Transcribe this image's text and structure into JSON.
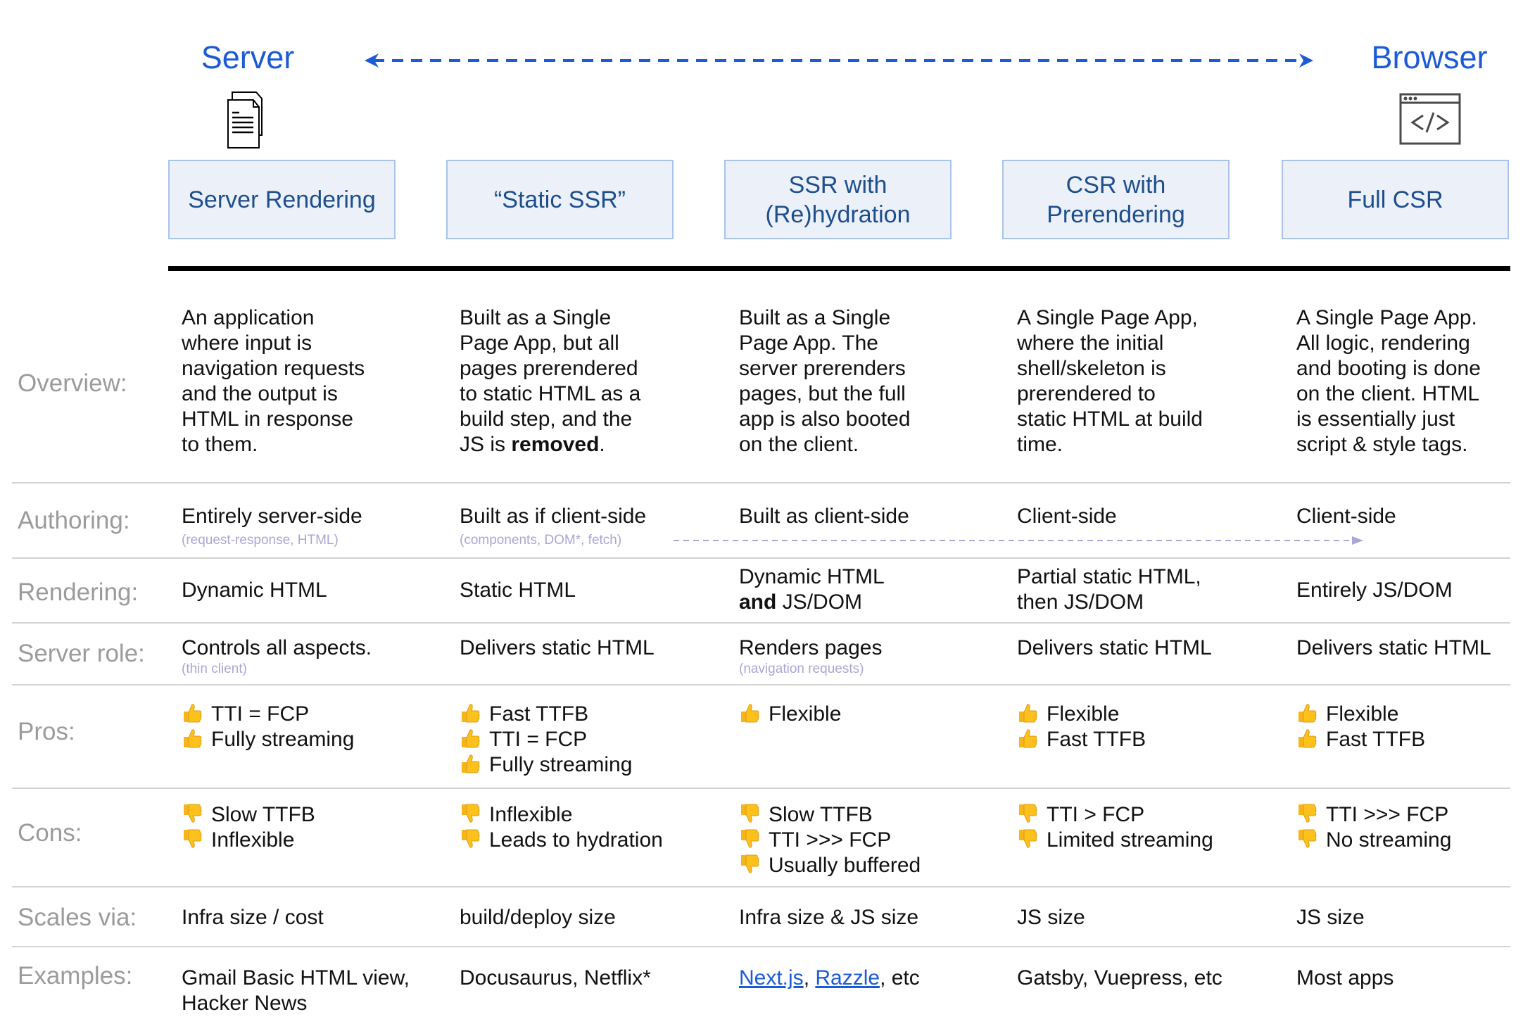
{
  "header": {
    "left_title": "Server",
    "right_title": "Browser",
    "left_icon": "document-icon",
    "right_icon": "browser-code-icon",
    "accent_color": "#1c5ad6"
  },
  "columns": [
    {
      "title": [
        "Server Rendering"
      ]
    },
    {
      "title": [
        "“Static SSR”"
      ]
    },
    {
      "title": [
        "SSR with",
        "(Re)hydration"
      ]
    },
    {
      "title": [
        "CSR with",
        "Prerendering"
      ]
    },
    {
      "title": [
        "Full CSR"
      ]
    }
  ],
  "rows": [
    {
      "key": "overview",
      "label": "Overview:",
      "cells": [
        {
          "lines": [
            [
              {
                "t": "An application"
              }
            ],
            [
              {
                "t": "where input is"
              }
            ],
            [
              {
                "t": "navigation requests"
              }
            ],
            [
              {
                "t": "and the output is"
              }
            ],
            [
              {
                "t": "HTML in response"
              }
            ],
            [
              {
                "t": "to them."
              }
            ]
          ]
        },
        {
          "lines": [
            [
              {
                "t": "Built as a Single"
              }
            ],
            [
              {
                "t": "Page App, but all"
              }
            ],
            [
              {
                "t": "pages prerendered"
              }
            ],
            [
              {
                "t": "to static HTML as a"
              }
            ],
            [
              {
                "t": "build step, and the"
              }
            ],
            [
              {
                "t": "JS is "
              },
              {
                "t": "removed",
                "b": true
              },
              {
                "t": "."
              }
            ]
          ]
        },
        {
          "lines": [
            [
              {
                "t": "Built as a Single"
              }
            ],
            [
              {
                "t": "Page App. The"
              }
            ],
            [
              {
                "t": "server prerenders"
              }
            ],
            [
              {
                "t": "pages, but the full"
              }
            ],
            [
              {
                "t": "app is also booted"
              }
            ],
            [
              {
                "t": "on the client."
              }
            ]
          ]
        },
        {
          "lines": [
            [
              {
                "t": "A Single Page App,"
              }
            ],
            [
              {
                "t": "where the initial"
              }
            ],
            [
              {
                "t": "shell/skeleton is"
              }
            ],
            [
              {
                "t": "prerendered to"
              }
            ],
            [
              {
                "t": "static HTML at build"
              }
            ],
            [
              {
                "t": "time."
              }
            ]
          ]
        },
        {
          "lines": [
            [
              {
                "t": "A Single Page App."
              }
            ],
            [
              {
                "t": "All logic, rendering"
              }
            ],
            [
              {
                "t": "and booting is done"
              }
            ],
            [
              {
                "t": "on the client. HTML"
              }
            ],
            [
              {
                "t": "is essentially just"
              }
            ],
            [
              {
                "t": "script & style tags."
              }
            ]
          ]
        }
      ]
    },
    {
      "key": "authoring",
      "label": "Authoring:",
      "cells": [
        {
          "lines": [
            [
              {
                "t": "Entirely server-side"
              }
            ]
          ],
          "sub": "(request-response, HTML)"
        },
        {
          "lines": [
            [
              {
                "t": "Built as if client-side"
              }
            ]
          ],
          "sub": "(components, DOM*, fetch)"
        },
        {
          "lines": [
            [
              {
                "t": "Built as client-side"
              }
            ]
          ]
        },
        {
          "lines": [
            [
              {
                "t": "Client-side"
              }
            ]
          ]
        },
        {
          "lines": [
            [
              {
                "t": "Client-side"
              }
            ]
          ]
        }
      ]
    },
    {
      "key": "rendering",
      "label": "Rendering:",
      "cells": [
        {
          "lines": [
            [
              {
                "t": "Dynamic HTML"
              }
            ]
          ]
        },
        {
          "lines": [
            [
              {
                "t": "Static HTML"
              }
            ]
          ]
        },
        {
          "lines": [
            [
              {
                "t": "Dynamic HTML"
              }
            ],
            [
              {
                "t": "and",
                "b": true
              },
              {
                "t": " JS/DOM"
              }
            ]
          ]
        },
        {
          "lines": [
            [
              {
                "t": "Partial static HTML,"
              }
            ],
            [
              {
                "t": "then JS/DOM"
              }
            ]
          ]
        },
        {
          "lines": [
            [
              {
                "t": "Entirely JS/DOM"
              }
            ]
          ]
        }
      ]
    },
    {
      "key": "server_role",
      "label": "Server role:",
      "cells": [
        {
          "lines": [
            [
              {
                "t": "Controls all aspects."
              }
            ]
          ],
          "sub": "(thin client)"
        },
        {
          "lines": [
            [
              {
                "t": "Delivers static HTML"
              }
            ]
          ]
        },
        {
          "lines": [
            [
              {
                "t": "Renders pages"
              }
            ]
          ],
          "sub": "(navigation requests)"
        },
        {
          "lines": [
            [
              {
                "t": "Delivers static HTML"
              }
            ]
          ]
        },
        {
          "lines": [
            [
              {
                "t": "Delivers static HTML"
              }
            ]
          ]
        }
      ]
    },
    {
      "key": "pros",
      "label": "Pros:",
      "icon": "thumbs-up-icon",
      "cells": [
        {
          "lines": [
            [
              {
                "t": "TTI = FCP"
              }
            ],
            [
              {
                "t": "Fully streaming"
              }
            ]
          ]
        },
        {
          "lines": [
            [
              {
                "t": "Fast TTFB"
              }
            ],
            [
              {
                "t": "TTI = FCP"
              }
            ],
            [
              {
                "t": "Fully streaming"
              }
            ]
          ]
        },
        {
          "lines": [
            [
              {
                "t": "Flexible"
              }
            ]
          ]
        },
        {
          "lines": [
            [
              {
                "t": "Flexible"
              }
            ],
            [
              {
                "t": "Fast TTFB"
              }
            ]
          ]
        },
        {
          "lines": [
            [
              {
                "t": "Flexible"
              }
            ],
            [
              {
                "t": "Fast TTFB"
              }
            ]
          ]
        }
      ]
    },
    {
      "key": "cons",
      "label": "Cons:",
      "icon": "thumbs-down-icon",
      "cells": [
        {
          "lines": [
            [
              {
                "t": "Slow TTFB"
              }
            ],
            [
              {
                "t": "Inflexible"
              }
            ]
          ]
        },
        {
          "lines": [
            [
              {
                "t": "Inflexible"
              }
            ],
            [
              {
                "t": "Leads to hydration"
              }
            ]
          ]
        },
        {
          "lines": [
            [
              {
                "t": "Slow TTFB"
              }
            ],
            [
              {
                "t": "TTI >>> FCP"
              }
            ],
            [
              {
                "t": "Usually buffered"
              }
            ]
          ]
        },
        {
          "lines": [
            [
              {
                "t": "TTI > FCP"
              }
            ],
            [
              {
                "t": "Limited streaming"
              }
            ]
          ]
        },
        {
          "lines": [
            [
              {
                "t": "TTI >>> FCP"
              }
            ],
            [
              {
                "t": "No streaming"
              }
            ]
          ]
        }
      ]
    },
    {
      "key": "scales",
      "label": "Scales via:",
      "cells": [
        {
          "lines": [
            [
              {
                "t": "Infra size / cost"
              }
            ]
          ]
        },
        {
          "lines": [
            [
              {
                "t": "build/deploy size"
              }
            ]
          ]
        },
        {
          "lines": [
            [
              {
                "t": "Infra size & JS size"
              }
            ]
          ]
        },
        {
          "lines": [
            [
              {
                "t": "JS size"
              }
            ]
          ]
        },
        {
          "lines": [
            [
              {
                "t": "JS size"
              }
            ]
          ]
        }
      ]
    },
    {
      "key": "examples",
      "label": "Examples:",
      "cells": [
        {
          "lines": [
            [
              {
                "t": "Gmail Basic HTML view,"
              }
            ],
            [
              {
                "t": "Hacker News"
              }
            ]
          ]
        },
        {
          "lines": [
            [
              {
                "t": "Docusaurus, Netflix*"
              }
            ]
          ]
        },
        {
          "lines": [
            [
              {
                "t": "Next.js",
                "link": true
              },
              {
                "t": ", "
              },
              {
                "t": "Razzle",
                "link": true
              },
              {
                "t": ", etc"
              }
            ]
          ]
        },
        {
          "lines": [
            [
              {
                "t": "Gatsby, Vuepress, etc"
              }
            ]
          ]
        },
        {
          "lines": [
            [
              {
                "t": "Most apps"
              }
            ]
          ]
        }
      ]
    }
  ]
}
